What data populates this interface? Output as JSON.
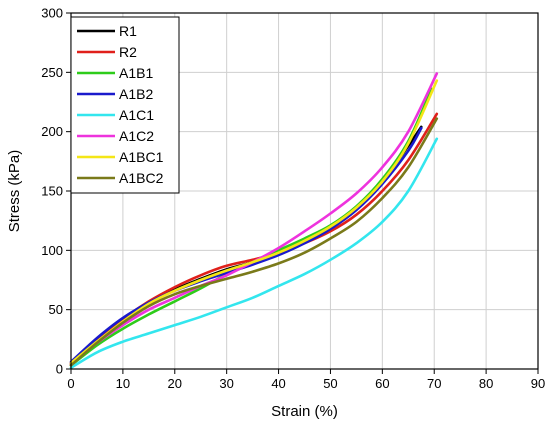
{
  "chart_data": {
    "type": "line",
    "xlabel": "Strain (%)",
    "ylabel": "Stress (kPa)",
    "xlim": [
      0,
      90
    ],
    "ylim": [
      0,
      300
    ],
    "x_ticks": [
      0,
      10,
      20,
      30,
      40,
      50,
      60,
      70,
      80,
      90
    ],
    "y_ticks": [
      0,
      50,
      100,
      150,
      200,
      250,
      300
    ],
    "grid": true,
    "legend_position": "top-left",
    "series": [
      {
        "name": "R1",
        "color": "#000000",
        "x": [
          0,
          5,
          10,
          15,
          20,
          25,
          30,
          35,
          40,
          45,
          50,
          55,
          60,
          65,
          67.5
        ],
        "y": [
          5,
          25,
          42,
          56,
          67,
          76,
          84,
          90,
          98,
          108,
          120,
          136,
          158,
          188,
          204
        ]
      },
      {
        "name": "R2",
        "color": "#e0201b",
        "x": [
          0,
          5,
          10,
          15,
          20,
          25,
          30,
          35,
          40,
          45,
          50,
          55,
          60,
          65,
          70.5
        ],
        "y": [
          4,
          24,
          42,
          57,
          69,
          79,
          87,
          92,
          98,
          106,
          116,
          130,
          150,
          176,
          215
        ]
      },
      {
        "name": "A1B1",
        "color": "#2ecc1a",
        "x": [
          0,
          5,
          10,
          15,
          20,
          25,
          30,
          35,
          40,
          45,
          50,
          55,
          60,
          65,
          69.5
        ],
        "y": [
          3,
          20,
          34,
          46,
          57,
          68,
          80,
          90,
          100,
          110,
          121,
          137,
          160,
          192,
          236
        ]
      },
      {
        "name": "A1B2",
        "color": "#1a1acc",
        "x": [
          0,
          5,
          10,
          15,
          20,
          25,
          30,
          35,
          40,
          45,
          50,
          55,
          60,
          65,
          67.5
        ],
        "y": [
          6,
          26,
          43,
          56,
          66,
          74,
          81,
          88,
          96,
          106,
          118,
          134,
          156,
          184,
          203
        ]
      },
      {
        "name": "A1C1",
        "color": "#33e6ee",
        "x": [
          0,
          5,
          10,
          15,
          20,
          25,
          30,
          35,
          40,
          45,
          50,
          55,
          60,
          65,
          70.5
        ],
        "y": [
          1,
          14,
          23,
          30,
          37,
          44,
          52,
          60,
          70,
          80,
          92,
          106,
          124,
          150,
          194
        ]
      },
      {
        "name": "A1C2",
        "color": "#ee33dd",
        "x": [
          0,
          5,
          10,
          15,
          20,
          25,
          30,
          35,
          40,
          45,
          50,
          55,
          60,
          65,
          70.5
        ],
        "y": [
          5,
          22,
          37,
          50,
          60,
          70,
          79,
          90,
          102,
          116,
          131,
          148,
          170,
          200,
          249
        ]
      },
      {
        "name": "A1BC1",
        "color": "#f4e617",
        "x": [
          0,
          5,
          10,
          15,
          20,
          25,
          30,
          35,
          40,
          45,
          50,
          55,
          60,
          65,
          70.5
        ],
        "y": [
          5,
          23,
          40,
          55,
          66,
          75,
          83,
          90,
          98,
          108,
          120,
          136,
          158,
          190,
          243
        ]
      },
      {
        "name": "A1BC2",
        "color": "#7a7a1a",
        "x": [
          0,
          5,
          10,
          15,
          20,
          25,
          30,
          35,
          40,
          45,
          50,
          55,
          60,
          65,
          70.5
        ],
        "y": [
          3,
          22,
          39,
          53,
          63,
          70,
          76,
          82,
          89,
          98,
          110,
          124,
          144,
          170,
          211
        ]
      }
    ]
  }
}
